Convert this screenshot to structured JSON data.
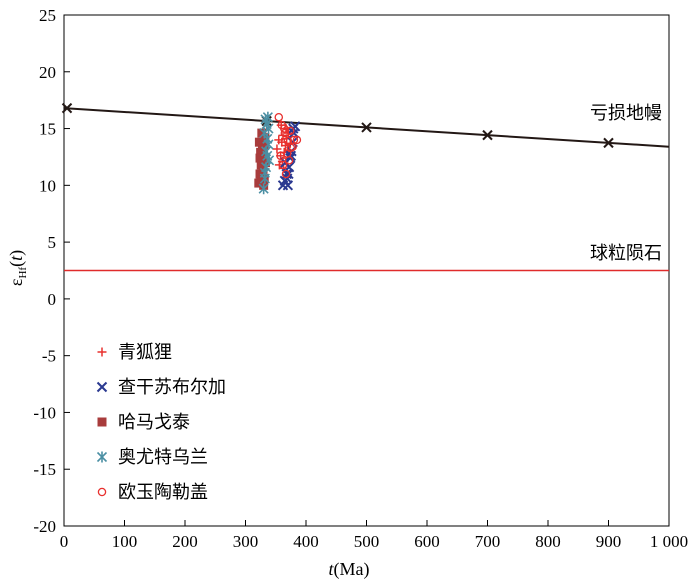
{
  "chart_data": {
    "type": "scatter",
    "xlabel_italic": "t",
    "xlabel_rest": "(Ma)",
    "ylabel_symbol": "ε",
    "ylabel_sub": "Hf",
    "ylabel_rest_open": "(",
    "ylabel_rest_italic": "t",
    "ylabel_rest_close": ")",
    "xlim": [
      0,
      1000
    ],
    "ylim": [
      -20,
      25
    ],
    "xticks": [
      0,
      100,
      200,
      300,
      400,
      500,
      600,
      700,
      800,
      900,
      1000
    ],
    "xtick_labels": [
      "0",
      "100",
      "200",
      "300",
      "400",
      "500",
      "600",
      "700",
      "800",
      "900",
      "1 000"
    ],
    "yticks": [
      -20,
      -15,
      -10,
      -5,
      0,
      5,
      10,
      15,
      20,
      25
    ],
    "ytick_labels": [
      "-20",
      "-15",
      "-10",
      "-5",
      "0",
      "5",
      "10",
      "15",
      "20",
      "25"
    ],
    "grid": false,
    "legend_position": "bottom-left",
    "reference_lines": [
      {
        "label": "亏损地幔",
        "color": "#231815",
        "x": [
          0,
          1000
        ],
        "y": [
          16.8,
          13.4
        ],
        "marker_x": [
          5,
          335,
          500,
          700,
          900
        ],
        "marker_y": [
          16.8,
          15.66,
          15.1,
          14.42,
          13.74
        ]
      },
      {
        "label": "球粒陨石",
        "color": "#e02b2b",
        "x": [
          0,
          1000
        ],
        "y": [
          2.5,
          2.5
        ]
      }
    ],
    "series": [
      {
        "name": "青狐狸",
        "marker": "plus",
        "color": "#e8302e",
        "x": [
          352,
          355,
          358,
          360,
          362,
          364,
          366,
          368,
          370,
          372,
          356,
          361,
          367,
          371,
          374,
          359,
          363
        ],
        "y": [
          13.2,
          14.0,
          12.6,
          13.8,
          14.4,
          12.9,
          13.5,
          14.1,
          12.4,
          13.0,
          11.8,
          12.1,
          15.0,
          14.6,
          13.7,
          15.3,
          11.5
        ]
      },
      {
        "name": "查干苏布尔加",
        "marker": "x",
        "color": "#2b3990",
        "x": [
          362,
          365,
          368,
          370,
          372,
          374,
          376,
          378,
          380,
          382,
          366,
          371,
          375,
          379,
          369
        ],
        "y": [
          10.0,
          10.4,
          11.0,
          10.0,
          11.6,
          12.4,
          13.0,
          13.8,
          14.6,
          15.2,
          12.0,
          11.0,
          12.6,
          15.0,
          10.6
        ]
      },
      {
        "name": "哈马戈泰",
        "marker": "square",
        "color": "#a83c3c",
        "x": [
          322,
          324,
          326,
          328,
          330,
          332,
          325,
          329,
          331,
          327,
          323,
          333,
          330,
          326,
          328,
          324
        ],
        "y": [
          10.2,
          11.0,
          11.8,
          12.6,
          13.4,
          14.2,
          12.9,
          11.4,
          10.6,
          14.6,
          13.8,
          12.0,
          10.0,
          10.8,
          13.2,
          12.4
        ]
      },
      {
        "name": "奥尤特乌兰",
        "marker": "asterisk",
        "color": "#4b8fa3",
        "x": [
          330,
          332,
          334,
          336,
          338,
          331,
          335,
          337,
          333,
          339,
          334,
          336,
          332,
          338
        ],
        "y": [
          9.7,
          10.6,
          11.6,
          12.6,
          13.6,
          14.6,
          15.4,
          16.0,
          15.8,
          12.2,
          13.0,
          14.1,
          11.1,
          15.0
        ]
      },
      {
        "name": "欧玉陶勒盖",
        "marker": "circle",
        "color": "#e8302e",
        "x": [
          355,
          360,
          365,
          370,
          375,
          380,
          385,
          358,
          362,
          367,
          372,
          378,
          364,
          369,
          374
        ],
        "y": [
          16.0,
          15.3,
          14.6,
          13.9,
          13.3,
          14.0,
          14.0,
          12.6,
          11.8,
          11.0,
          12.2,
          13.4,
          15.0,
          12.8,
          14.8
        ]
      }
    ]
  }
}
